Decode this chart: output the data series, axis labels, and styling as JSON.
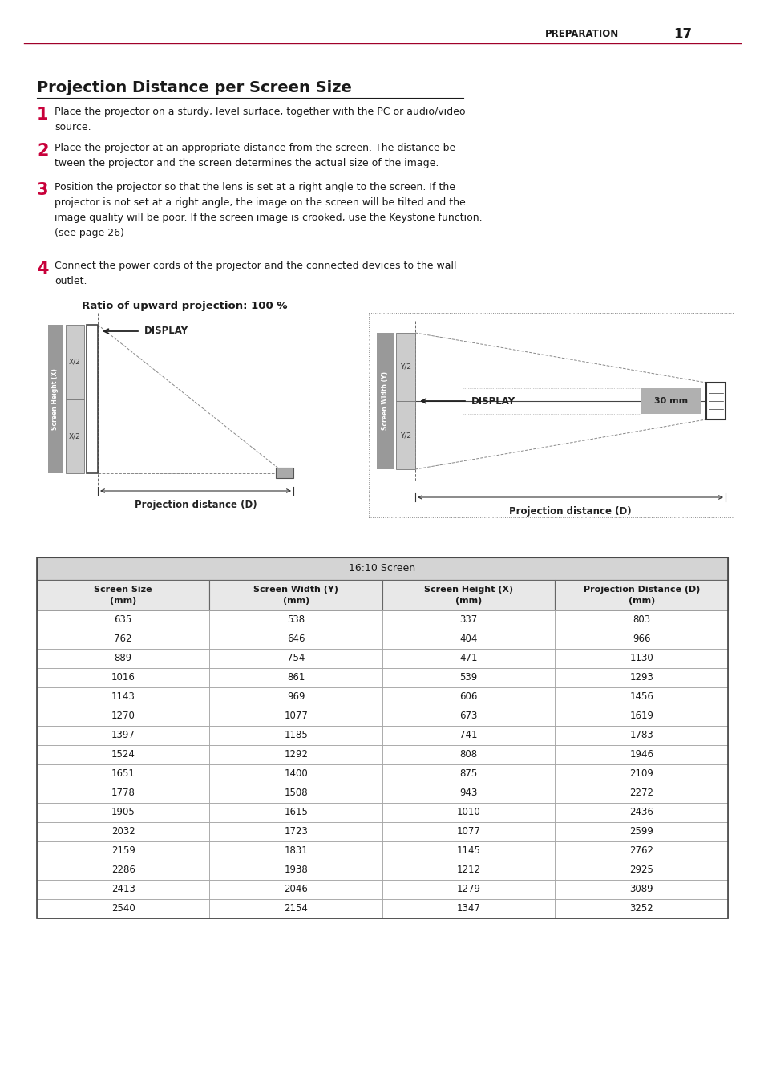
{
  "page_header": "PREPARATION",
  "page_number": "17",
  "header_line_color": "#a0002a",
  "title": "Projection Distance per Screen Size",
  "num_color": "#c8003a",
  "diagram_title": "Ratio of upward projection: 100 %",
  "table_header": "16:10 Screen",
  "table_columns": [
    "Screen Size\n(mm)",
    "Screen Width (Y)\n(mm)",
    "Screen Height (X)\n(mm)",
    "Projection Distance (D)\n(mm)"
  ],
  "table_data": [
    [
      635,
      538,
      337,
      803
    ],
    [
      762,
      646,
      404,
      966
    ],
    [
      889,
      754,
      471,
      1130
    ],
    [
      1016,
      861,
      539,
      1293
    ],
    [
      1143,
      969,
      606,
      1456
    ],
    [
      1270,
      1077,
      673,
      1619
    ],
    [
      1397,
      1185,
      741,
      1783
    ],
    [
      1524,
      1292,
      808,
      1946
    ],
    [
      1651,
      1400,
      875,
      2109
    ],
    [
      1778,
      1508,
      943,
      2272
    ],
    [
      1905,
      1615,
      1010,
      2436
    ],
    [
      2032,
      1723,
      1077,
      2599
    ],
    [
      2159,
      1831,
      1145,
      2762
    ],
    [
      2286,
      1938,
      1212,
      2925
    ],
    [
      2413,
      2046,
      1279,
      3089
    ],
    [
      2540,
      2154,
      1347,
      3252
    ]
  ],
  "background": "#ffffff",
  "text_color": "#1a1a1a",
  "body_font_size": 9.0,
  "title_font_size": 14
}
